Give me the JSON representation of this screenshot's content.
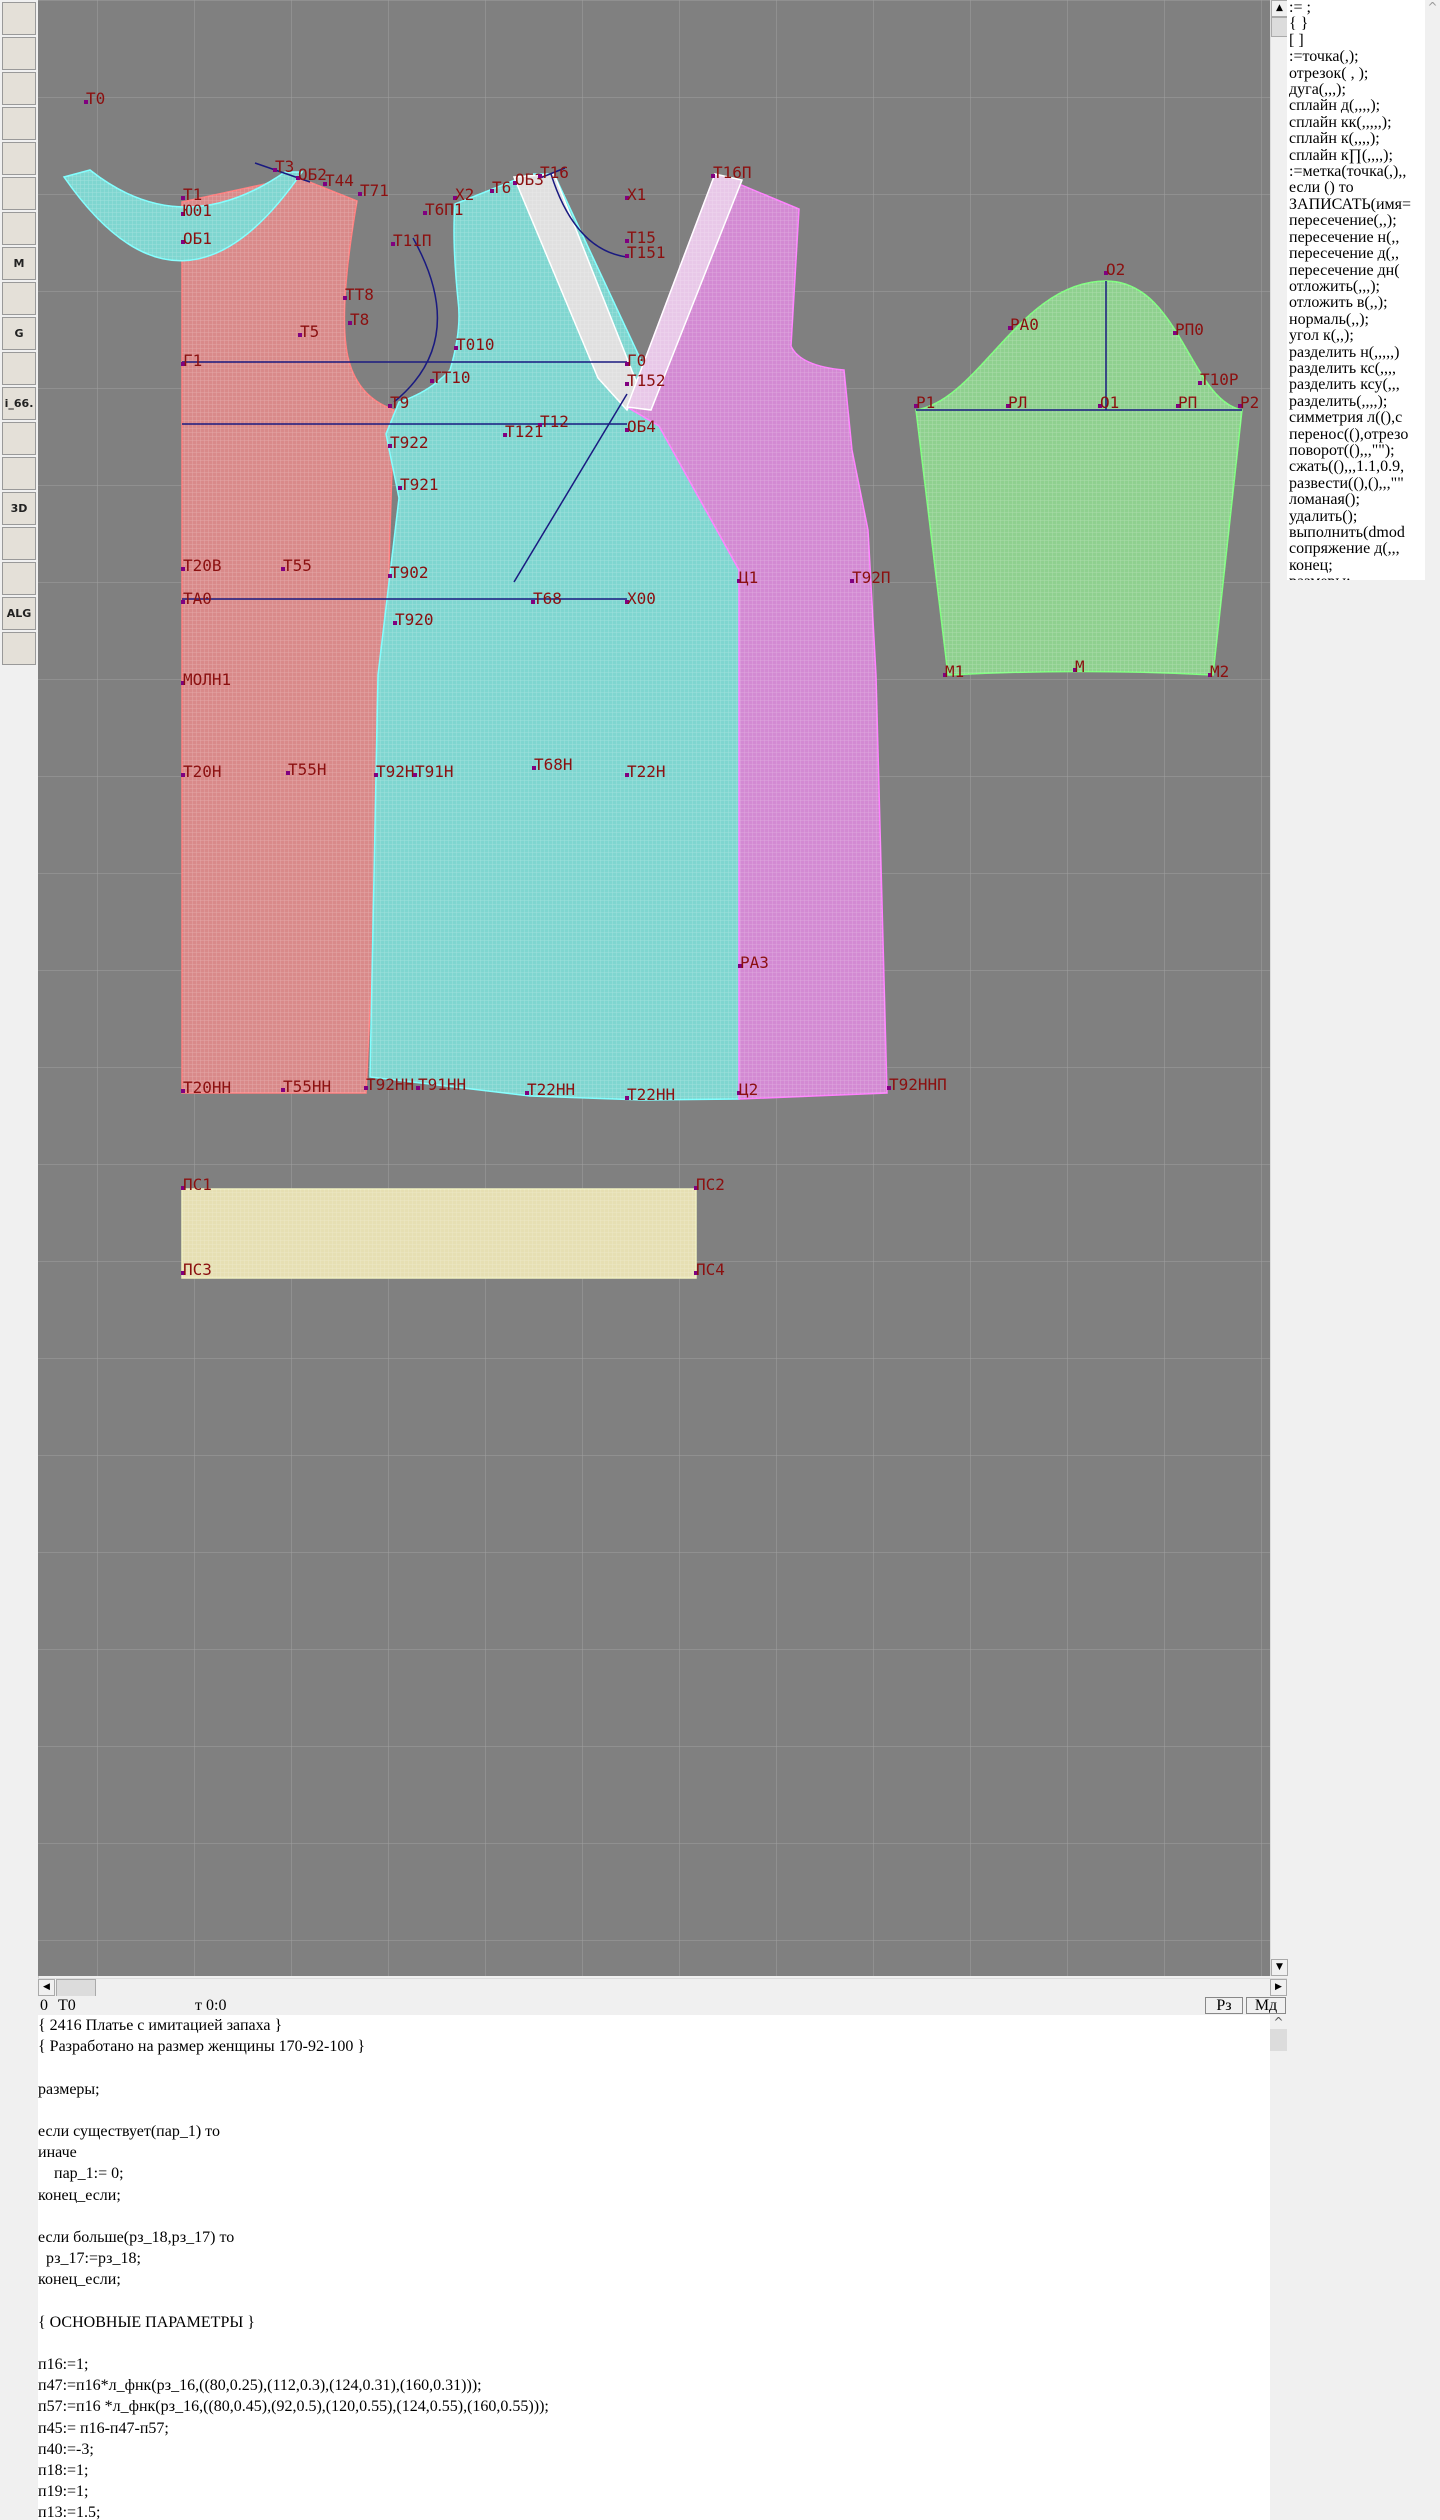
{
  "toolbar": {
    "tools": [
      {
        "icon": "zoom-in-icon",
        "label": ""
      },
      {
        "icon": "zoom-out-icon",
        "label": ""
      },
      {
        "icon": "pattern-pieces-icon",
        "label": ""
      },
      {
        "icon": "grid-icon",
        "label": ""
      },
      {
        "icon": "segment-icon",
        "label": ""
      },
      {
        "icon": "layout-icon",
        "label": ""
      },
      {
        "icon": "piece-outline-icon",
        "label": ""
      },
      {
        "icon": "pattern-m-icon",
        "label": "M"
      },
      {
        "icon": "compass-icon",
        "label": ""
      },
      {
        "icon": "grading-g-icon",
        "label": "G"
      },
      {
        "icon": "measure-icon",
        "label": ""
      },
      {
        "icon": "text-i66-icon",
        "label": "i_66."
      },
      {
        "icon": "table-icon",
        "label": ""
      },
      {
        "icon": "figure-photo-icon",
        "label": ""
      },
      {
        "icon": "3d-icon",
        "label": "3D"
      },
      {
        "icon": "list-icon",
        "label": ""
      },
      {
        "icon": "books-icon",
        "label": ""
      },
      {
        "icon": "algorithm-icon",
        "label": "ALG"
      },
      {
        "icon": "exit-icon",
        "label": ""
      }
    ]
  },
  "canvas": {
    "colors": {
      "background": "#808080",
      "back": "#d98a8a",
      "front_center": "#7fd6d0",
      "front_side": "#d38ad3",
      "sleeve": "#8fd08f",
      "belt": "#e6dfb3",
      "label": "#8b1010"
    },
    "origin_label": "Т0",
    "labels": [
      "Т3",
      "ОБ2",
      "Т44",
      "Т71",
      "Т1",
      "Ю01",
      "ОБ1",
      "Т6П1",
      "Х2",
      "Т6",
      "ОБ3",
      "Т16",
      "Х1",
      "Т16П",
      "Т11П",
      "Т15",
      "Т151",
      "ТТ8",
      "Т8",
      "Т5",
      "Т010",
      "Г1",
      "Г0",
      "ТТ10",
      "Т152",
      "Т9",
      "Т12",
      "Т121",
      "ОБ4",
      "Т922",
      "Т921",
      "Т20В",
      "Т55",
      "Т902",
      "Ц1",
      "Т92П",
      "ТА0",
      "Т68",
      "Х00",
      "Т920",
      "МОЛН1",
      "Т20Н",
      "Т55Н",
      "Т92Н",
      "Т91Н",
      "Т68Н",
      "Т22Н",
      "РА3",
      "Т20НН",
      "Т55НН",
      "Т92НН",
      "Т91НН",
      "Т22НН",
      "Т22НН",
      "Ц2",
      "Т92ННП",
      "ПС1",
      "ПС2",
      "ПС3",
      "ПС4",
      "О2",
      "РА0",
      "РП0",
      "Т10Р",
      "Р1",
      "РЛ",
      "О1",
      "РП",
      "Р2",
      "М1",
      "М",
      "М2"
    ]
  },
  "commands": [
    ":= ;",
    "{  }",
    "[  ]",
    ":=точка(,);",
    "отрезок( , );",
    "дуга(,,,);",
    "сплайн  д(,,,,);",
    "сплайн  кк(,,,,,);",
    "сплайн  к(,,,,);",
    "сплайн  к∏(,,,,);",
    ":=метка(точка(,),,",
    "если () то",
    "ЗАПИСАТЬ(имя=",
    "пересечение(,,);",
    "пересечение  н(,,",
    "пересечение  д(,,",
    "пересечение  дн(",
    "отложить(,,,);",
    "отложить  в(,,);",
    "нормаль(,,);",
    "угол  к(,,);",
    "разделить  н(,,,,,)",
    "разделить  кс(,,,,",
    "разделить  ксу(,,,",
    "разделить(,,,,);",
    "симметрия  л((),с",
    "перенос((),отрезо",
    "поворот((),,,\"\");",
    "сжать((),,,1.1,0.9,",
    "развести((),(),,,\"\"",
    "ломаная();",
    "удалить();",
    "выполнить(dmod",
    "сопряжение  д(,,,",
    "конец;",
    "размеры;"
  ],
  "status": {
    "index": "0",
    "point": "Т0",
    "coords": "т 0:0",
    "btn_rz": "Рз",
    "btn_md": "Мд"
  },
  "code": {
    "lines": [
      "{ 2416 Платье с имитацией запаха }",
      "{ Разработано на размер женщины 170-92-100 }",
      "",
      "размеры;",
      "",
      "если существует(пар_1) то",
      "иначе",
      "    пар_1:= 0;",
      "конец_если;",
      "",
      "если больше(рз_18,рз_17) то",
      "  рз_17:=рз_18;",
      "конец_если;",
      "",
      "{ ОСНОВНЫЕ ПАРАМЕТРЫ }",
      "",
      "п16:=1;",
      "п47:=п16*л_фнк(рз_16,((80,0.25),(112,0.3),(124,0.31),(160,0.31)));",
      "п57:=п16 *л_фнк(рз_16,((80,0.45),(92,0.5),(120,0.55),(124,0.55),(160,0.55)));",
      "п45:= п16-п47-п57;",
      "п40:=-3;",
      "п18:=1;",
      "п19:=1;",
      "п13:=1.5;"
    ]
  }
}
